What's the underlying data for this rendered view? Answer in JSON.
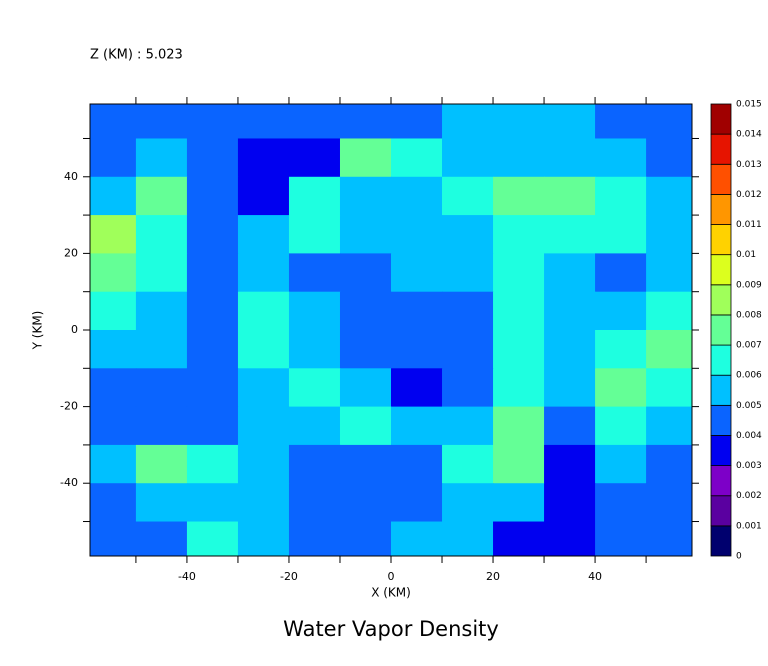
{
  "chart_data": {
    "type": "contour",
    "title": "Water Vapor Density",
    "subtitle": "Z (KM) : 5.023",
    "xlabel": "X (KM)",
    "ylabel": "Y (KM)",
    "x": [
      -55,
      -45,
      -35,
      -25,
      -15,
      -5,
      5,
      15,
      25,
      35,
      45,
      55
    ],
    "y": [
      55,
      45,
      35,
      25,
      15,
      5,
      -5,
      -15,
      -25,
      -35,
      -45,
      -55
    ],
    "z": [
      [
        0.0045,
        0.0045,
        0.0045,
        0.0045,
        0.0045,
        0.0045,
        0.0045,
        0.0055,
        0.0055,
        0.0055,
        0.0045,
        0.0045
      ],
      [
        0.0045,
        0.0055,
        0.0045,
        0.0035,
        0.0035,
        0.0075,
        0.0065,
        0.0055,
        0.0055,
        0.0055,
        0.0055,
        0.0045
      ],
      [
        0.0055,
        0.0075,
        0.0045,
        0.0035,
        0.0065,
        0.0055,
        0.0055,
        0.0065,
        0.0075,
        0.0075,
        0.0065,
        0.0055
      ],
      [
        0.0085,
        0.0065,
        0.0045,
        0.0055,
        0.0065,
        0.0055,
        0.0055,
        0.0055,
        0.0065,
        0.0065,
        0.0065,
        0.0055
      ],
      [
        0.0075,
        0.0065,
        0.0045,
        0.0055,
        0.0045,
        0.0045,
        0.0055,
        0.0055,
        0.0065,
        0.0055,
        0.0045,
        0.0055
      ],
      [
        0.0065,
        0.0055,
        0.0045,
        0.0065,
        0.0055,
        0.0045,
        0.0045,
        0.0045,
        0.0065,
        0.0055,
        0.0055,
        0.0065
      ],
      [
        0.0055,
        0.0055,
        0.0045,
        0.0065,
        0.0055,
        0.0045,
        0.0045,
        0.0045,
        0.0065,
        0.0055,
        0.0065,
        0.0075
      ],
      [
        0.0045,
        0.0045,
        0.0045,
        0.0055,
        0.0065,
        0.0055,
        0.0035,
        0.0045,
        0.0065,
        0.0055,
        0.0075,
        0.0065
      ],
      [
        0.0045,
        0.0045,
        0.0045,
        0.0055,
        0.0055,
        0.0065,
        0.0055,
        0.0055,
        0.0075,
        0.0045,
        0.0065,
        0.0055
      ],
      [
        0.0055,
        0.0075,
        0.0065,
        0.0055,
        0.0045,
        0.0045,
        0.0045,
        0.0065,
        0.0075,
        0.0035,
        0.0055,
        0.0045
      ],
      [
        0.0045,
        0.0055,
        0.0055,
        0.0055,
        0.0045,
        0.0045,
        0.0045,
        0.0055,
        0.0055,
        0.0035,
        0.0045,
        0.0045
      ],
      [
        0.0045,
        0.0045,
        0.0065,
        0.0055,
        0.0045,
        0.0045,
        0.0055,
        0.0055,
        0.0035,
        0.0035,
        0.0045,
        0.0045
      ]
    ],
    "xlim": [
      -59,
      59
    ],
    "ylim": [
      -59,
      59
    ],
    "xticks": [
      -40,
      -20,
      0,
      20,
      40
    ],
    "yticks": [
      -40,
      -20,
      0,
      20,
      40
    ],
    "xminorticks": [
      -50,
      -30,
      -10,
      10,
      30,
      50
    ],
    "yminorticks": [
      -50,
      -30,
      -10,
      10,
      30,
      50
    ],
    "levels": [
      0,
      0.001,
      0.002,
      0.003,
      0.004,
      0.005,
      0.006,
      0.007,
      0.008,
      0.009,
      0.01,
      0.011,
      0.012,
      0.013,
      0.014,
      0.015
    ],
    "colors": [
      "#00006e",
      "#5a00a0",
      "#7d00c8",
      "#0000f0",
      "#0a64ff",
      "#00c0ff",
      "#1effe0",
      "#64ff96",
      "#a0ff5a",
      "#dcff1e",
      "#ffd200",
      "#ff9600",
      "#ff5000",
      "#e61400",
      "#a00000"
    ]
  }
}
